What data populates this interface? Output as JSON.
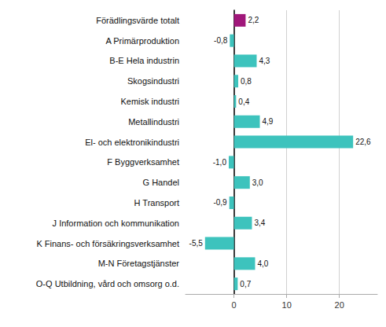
{
  "chart_data": {
    "type": "bar",
    "orientation": "horizontal",
    "categories": [
      "Förädlingsvärde totalt",
      "A Primärproduktion",
      "B-E Hela industrin",
      "Skogsindustri",
      "Kemisk industri",
      "Metallindustri",
      "El- och elektronikindustri",
      "F Byggverksamhet",
      "G Handel",
      "H Transport",
      "J Information och kommunikation",
      "K Finans- och försäkringsverksamhet",
      "M-N Företagstjänster",
      "O-Q Utbildning, vård och omsorg o.d."
    ],
    "values": [
      2.2,
      -0.8,
      4.3,
      0.8,
      0.4,
      4.9,
      22.6,
      -1.0,
      3.0,
      -0.9,
      3.4,
      -5.5,
      4.0,
      0.7
    ],
    "value_labels": [
      "2,2",
      "-0,8",
      "4,3",
      "0,8",
      "0,4",
      "4,9",
      "22,6",
      "-1,0",
      "3,0",
      "-0,9",
      "3,4",
      "-5,5",
      "4,0",
      "0,7"
    ],
    "colors": [
      "#a0177a",
      "#3dc3bd",
      "#3dc3bd",
      "#3dc3bd",
      "#3dc3bd",
      "#3dc3bd",
      "#3dc3bd",
      "#3dc3bd",
      "#3dc3bd",
      "#3dc3bd",
      "#3dc3bd",
      "#3dc3bd",
      "#3dc3bd",
      "#3dc3bd"
    ],
    "xlim": [
      -9.2,
      27.2
    ],
    "xticks": [
      0,
      10,
      20
    ],
    "grid": true,
    "data_labels": true
  }
}
